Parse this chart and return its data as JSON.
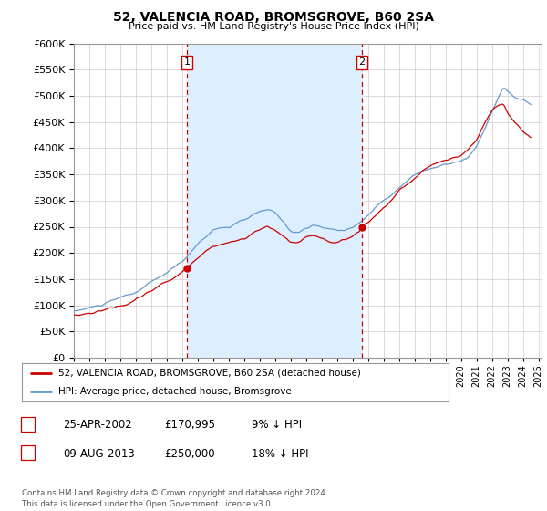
{
  "title": "52, VALENCIA ROAD, BROMSGROVE, B60 2SA",
  "subtitle": "Price paid vs. HM Land Registry's House Price Index (HPI)",
  "legend_line1": "52, VALENCIA ROAD, BROMSGROVE, B60 2SA (detached house)",
  "legend_line2": "HPI: Average price, detached house, Bromsgrove",
  "footnote": "Contains HM Land Registry data © Crown copyright and database right 2024.\nThis data is licensed under the Open Government Licence v3.0.",
  "annotation1": {
    "label": "1",
    "date": "25-APR-2002",
    "price": "£170,995",
    "pct": "9% ↓ HPI"
  },
  "annotation2": {
    "label": "2",
    "date": "09-AUG-2013",
    "price": "£250,000",
    "pct": "18% ↓ HPI"
  },
  "sale1_x": 2002.32,
  "sale1_y": 170995,
  "sale2_x": 2013.61,
  "sale2_y": 250000,
  "vline1_x": 2002.32,
  "vline2_x": 2013.61,
  "red_color": "#cc0000",
  "blue_color": "#6699cc",
  "vline_color": "#cc0000",
  "shade_color": "#ddeeff",
  "ylim": [
    0,
    600000
  ],
  "xlim_left": 1995.5,
  "xlim_right": 2025.2
}
